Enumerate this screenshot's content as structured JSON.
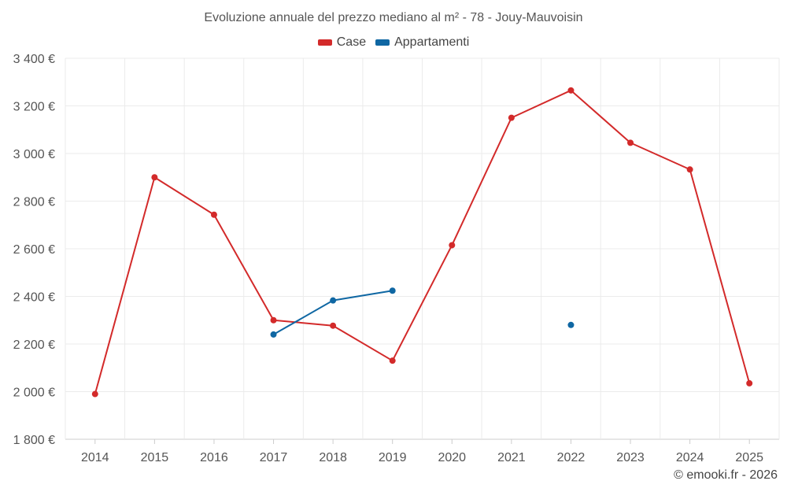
{
  "chart_data": {
    "type": "line",
    "title": "Evoluzione annuale del prezzo mediano al m² - 78 - Jouy-Mauvoisin",
    "categories": [
      "2014",
      "2015",
      "2016",
      "2017",
      "2018",
      "2019",
      "2020",
      "2021",
      "2022",
      "2023",
      "2024",
      "2025"
    ],
    "ylim": [
      1800,
      3400
    ],
    "yticks": [
      1800,
      2000,
      2200,
      2400,
      2600,
      2800,
      3000,
      3200,
      3400
    ],
    "ytick_labels": [
      "1 800 €",
      "2 000 €",
      "2 200 €",
      "2 400 €",
      "2 600 €",
      "2 800 €",
      "3 000 €",
      "3 200 €",
      "3 400 €"
    ],
    "grid": true,
    "legend_position": "top-center",
    "series": [
      {
        "name": "Case",
        "color": "#d32a2a",
        "values": [
          1990,
          2900,
          2743,
          2300,
          2277,
          2130,
          2615,
          3150,
          3265,
          3045,
          2933,
          2035
        ]
      },
      {
        "name": "Appartamenti",
        "color": "#0f67a3",
        "values": [
          null,
          null,
          null,
          2240,
          2383,
          2424,
          null,
          null,
          2280,
          null,
          null,
          null
        ]
      }
    ]
  },
  "credit": "© emooki.fr - 2026"
}
